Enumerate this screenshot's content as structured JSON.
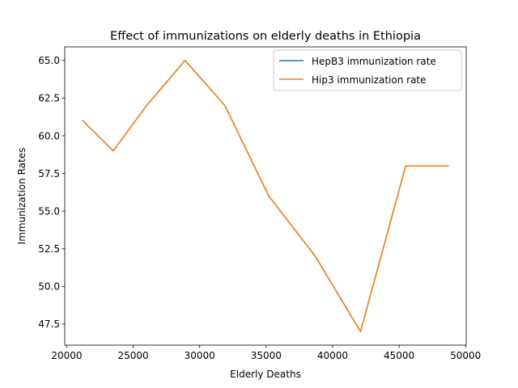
{
  "chart_data": {
    "type": "line",
    "title": "Effect of immunizations on elderly deaths in Ethiopia",
    "xlabel": "Elderly Deaths",
    "ylabel": "Immunization Rates",
    "xlim": [
      19850,
      50050
    ],
    "ylim": [
      46.1,
      65.9
    ],
    "xticks": [
      20000,
      25000,
      30000,
      35000,
      40000,
      45000,
      50000
    ],
    "yticks": [
      47.5,
      50.0,
      52.5,
      55.0,
      57.5,
      60.0,
      62.5,
      65.0
    ],
    "xtick_labels": [
      "20000",
      "25000",
      "30000",
      "35000",
      "40000",
      "45000",
      "50000"
    ],
    "ytick_labels": [
      "47.5",
      "50.0",
      "52.5",
      "55.0",
      "57.5",
      "60.0",
      "62.5",
      "65.0"
    ],
    "x": [
      21200,
      23500,
      26000,
      28900,
      31900,
      35200,
      38700,
      42100,
      45500,
      48700
    ],
    "series": [
      {
        "name": "HepB3 immunization rate",
        "color": "#1f77b4",
        "values": [
          61,
          59,
          62,
          65,
          62,
          56,
          52,
          47,
          58,
          58
        ]
      },
      {
        "name": "Hip3 immunization rate",
        "color": "#ff7f0e",
        "values": [
          61,
          59,
          62,
          65,
          62,
          56,
          52,
          47,
          58,
          58
        ]
      }
    ],
    "legend_position": "upper right",
    "grid": false
  }
}
